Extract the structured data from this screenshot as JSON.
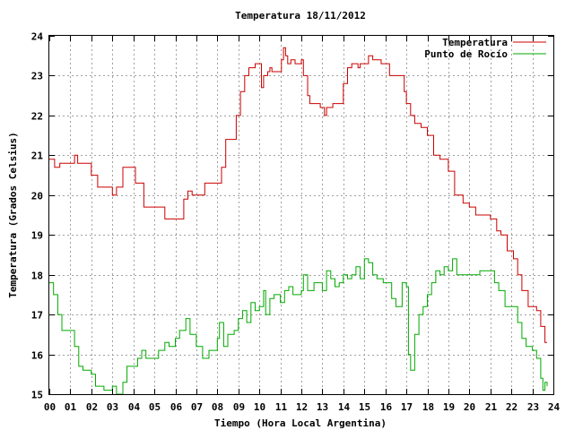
{
  "chart_data": {
    "type": "line",
    "title": "Temperatura 18/11/2012",
    "xlabel": "Tiempo (Hora Local Argentina)",
    "ylabel": "Temperatura (Grados Celsius)",
    "xlim": [
      0,
      24
    ],
    "ylim": [
      15,
      24
    ],
    "x_tick_labels": [
      "00",
      "01",
      "02",
      "03",
      "04",
      "05",
      "06",
      "07",
      "08",
      "09",
      "10",
      "11",
      "12",
      "13",
      "14",
      "15",
      "16",
      "17",
      "18",
      "19",
      "20",
      "21",
      "22",
      "23",
      "24"
    ],
    "y_tick_labels": [
      "15",
      "16",
      "17",
      "18",
      "19",
      "20",
      "21",
      "22",
      "23",
      "24"
    ],
    "grid": true,
    "legend_position": "top-right",
    "series": [
      {
        "name": "Temperatura",
        "color": "#cc0000",
        "points": [
          [
            0.0,
            20.9
          ],
          [
            0.25,
            20.7
          ],
          [
            0.5,
            20.8
          ],
          [
            1.0,
            20.8
          ],
          [
            1.2,
            21.0
          ],
          [
            1.35,
            20.8
          ],
          [
            1.7,
            20.8
          ],
          [
            2.0,
            20.5
          ],
          [
            2.3,
            20.2
          ],
          [
            2.8,
            20.2
          ],
          [
            3.0,
            20.0
          ],
          [
            3.2,
            20.2
          ],
          [
            3.5,
            20.7
          ],
          [
            3.9,
            20.7
          ],
          [
            4.1,
            20.3
          ],
          [
            4.5,
            19.7
          ],
          [
            5.4,
            19.7
          ],
          [
            5.5,
            19.4
          ],
          [
            6.1,
            19.4
          ],
          [
            6.4,
            19.9
          ],
          [
            6.6,
            20.1
          ],
          [
            6.8,
            20.0
          ],
          [
            7.1,
            20.0
          ],
          [
            7.4,
            20.3
          ],
          [
            8.0,
            20.3
          ],
          [
            8.2,
            20.7
          ],
          [
            8.4,
            21.4
          ],
          [
            8.7,
            21.4
          ],
          [
            8.9,
            22.0
          ],
          [
            9.1,
            22.6
          ],
          [
            9.3,
            23.0
          ],
          [
            9.5,
            23.2
          ],
          [
            9.8,
            23.3
          ],
          [
            10.0,
            23.3
          ],
          [
            10.1,
            22.7
          ],
          [
            10.2,
            23.0
          ],
          [
            10.4,
            23.1
          ],
          [
            10.5,
            23.2
          ],
          [
            10.6,
            23.1
          ],
          [
            11.0,
            23.1
          ],
          [
            11.05,
            23.4
          ],
          [
            11.15,
            23.7
          ],
          [
            11.25,
            23.5
          ],
          [
            11.35,
            23.3
          ],
          [
            11.5,
            23.4
          ],
          [
            11.7,
            23.3
          ],
          [
            12.0,
            23.4
          ],
          [
            12.1,
            23.0
          ],
          [
            12.3,
            22.5
          ],
          [
            12.4,
            22.3
          ],
          [
            12.9,
            22.2
          ],
          [
            13.1,
            22.0
          ],
          [
            13.2,
            22.2
          ],
          [
            13.5,
            22.3
          ],
          [
            13.9,
            22.3
          ],
          [
            14.0,
            22.8
          ],
          [
            14.2,
            23.2
          ],
          [
            14.4,
            23.3
          ],
          [
            14.6,
            23.3
          ],
          [
            14.7,
            23.2
          ],
          [
            14.8,
            23.3
          ],
          [
            15.0,
            23.3
          ],
          [
            15.2,
            23.5
          ],
          [
            15.4,
            23.4
          ],
          [
            15.6,
            23.4
          ],
          [
            15.8,
            23.3
          ],
          [
            16.0,
            23.3
          ],
          [
            16.2,
            23.0
          ],
          [
            16.7,
            23.0
          ],
          [
            16.9,
            22.6
          ],
          [
            17.0,
            22.3
          ],
          [
            17.2,
            22.0
          ],
          [
            17.4,
            21.8
          ],
          [
            17.7,
            21.7
          ],
          [
            18.0,
            21.5
          ],
          [
            18.3,
            21.0
          ],
          [
            18.6,
            20.9
          ],
          [
            19.0,
            20.6
          ],
          [
            19.3,
            20.0
          ],
          [
            19.7,
            19.8
          ],
          [
            20.0,
            19.7
          ],
          [
            20.3,
            19.5
          ],
          [
            21.0,
            19.4
          ],
          [
            21.3,
            19.1
          ],
          [
            21.5,
            19.0
          ],
          [
            21.8,
            18.6
          ],
          [
            22.1,
            18.4
          ],
          [
            22.3,
            18.0
          ],
          [
            22.5,
            17.6
          ],
          [
            22.8,
            17.2
          ],
          [
            23.0,
            17.2
          ],
          [
            23.2,
            17.1
          ],
          [
            23.4,
            16.7
          ],
          [
            23.6,
            16.3
          ],
          [
            23.7,
            16.3
          ]
        ]
      },
      {
        "name": "Punto de Rocío",
        "color": "#00aa00",
        "points": [
          [
            0.0,
            17.8
          ],
          [
            0.2,
            17.5
          ],
          [
            0.4,
            17.0
          ],
          [
            0.6,
            16.6
          ],
          [
            1.0,
            16.6
          ],
          [
            1.2,
            16.2
          ],
          [
            1.4,
            15.7
          ],
          [
            1.6,
            15.6
          ],
          [
            2.0,
            15.5
          ],
          [
            2.2,
            15.2
          ],
          [
            2.6,
            15.1
          ],
          [
            3.0,
            15.2
          ],
          [
            3.2,
            15.0
          ],
          [
            3.5,
            15.3
          ],
          [
            3.7,
            15.7
          ],
          [
            4.0,
            15.7
          ],
          [
            4.2,
            15.9
          ],
          [
            4.4,
            16.1
          ],
          [
            4.6,
            15.9
          ],
          [
            5.0,
            15.9
          ],
          [
            5.2,
            16.1
          ],
          [
            5.5,
            16.3
          ],
          [
            5.7,
            16.2
          ],
          [
            6.0,
            16.4
          ],
          [
            6.2,
            16.6
          ],
          [
            6.5,
            16.9
          ],
          [
            6.7,
            16.5
          ],
          [
            7.0,
            16.2
          ],
          [
            7.3,
            15.9
          ],
          [
            7.6,
            16.1
          ],
          [
            8.0,
            16.4
          ],
          [
            8.1,
            16.8
          ],
          [
            8.3,
            16.2
          ],
          [
            8.5,
            16.5
          ],
          [
            8.8,
            16.6
          ],
          [
            9.0,
            16.9
          ],
          [
            9.2,
            17.1
          ],
          [
            9.4,
            16.8
          ],
          [
            9.6,
            17.3
          ],
          [
            9.8,
            17.1
          ],
          [
            10.0,
            17.2
          ],
          [
            10.2,
            17.6
          ],
          [
            10.3,
            17.0
          ],
          [
            10.5,
            17.4
          ],
          [
            10.7,
            17.5
          ],
          [
            11.0,
            17.3
          ],
          [
            11.2,
            17.6
          ],
          [
            11.4,
            17.7
          ],
          [
            11.6,
            17.5
          ],
          [
            12.0,
            17.6
          ],
          [
            12.1,
            18.0
          ],
          [
            12.3,
            17.6
          ],
          [
            12.6,
            17.8
          ],
          [
            12.8,
            17.8
          ],
          [
            13.0,
            17.6
          ],
          [
            13.2,
            18.1
          ],
          [
            13.4,
            17.9
          ],
          [
            13.6,
            17.7
          ],
          [
            13.8,
            17.8
          ],
          [
            14.0,
            18.0
          ],
          [
            14.2,
            17.9
          ],
          [
            14.4,
            18.0
          ],
          [
            14.6,
            18.2
          ],
          [
            14.8,
            17.9
          ],
          [
            15.0,
            18.4
          ],
          [
            15.2,
            18.3
          ],
          [
            15.4,
            18.0
          ],
          [
            15.6,
            17.9
          ],
          [
            15.9,
            17.8
          ],
          [
            16.2,
            17.8
          ],
          [
            16.3,
            17.4
          ],
          [
            16.5,
            17.2
          ],
          [
            16.8,
            17.8
          ],
          [
            17.0,
            17.7
          ],
          [
            17.1,
            16.0
          ],
          [
            17.2,
            15.6
          ],
          [
            17.4,
            16.5
          ],
          [
            17.6,
            17.0
          ],
          [
            17.8,
            17.2
          ],
          [
            18.0,
            17.5
          ],
          [
            18.2,
            17.8
          ],
          [
            18.4,
            18.1
          ],
          [
            18.6,
            18.0
          ],
          [
            18.8,
            18.2
          ],
          [
            19.0,
            18.1
          ],
          [
            19.2,
            18.4
          ],
          [
            19.4,
            18.0
          ],
          [
            19.7,
            18.0
          ],
          [
            20.0,
            18.0
          ],
          [
            20.3,
            18.0
          ],
          [
            20.5,
            18.1
          ],
          [
            21.0,
            18.1
          ],
          [
            21.2,
            17.8
          ],
          [
            21.4,
            17.6
          ],
          [
            21.7,
            17.2
          ],
          [
            22.0,
            17.2
          ],
          [
            22.3,
            16.8
          ],
          [
            22.5,
            16.4
          ],
          [
            22.7,
            16.2
          ],
          [
            23.0,
            16.1
          ],
          [
            23.2,
            15.9
          ],
          [
            23.4,
            15.4
          ],
          [
            23.5,
            15.1
          ],
          [
            23.6,
            15.3
          ],
          [
            23.7,
            15.2
          ]
        ]
      }
    ]
  }
}
